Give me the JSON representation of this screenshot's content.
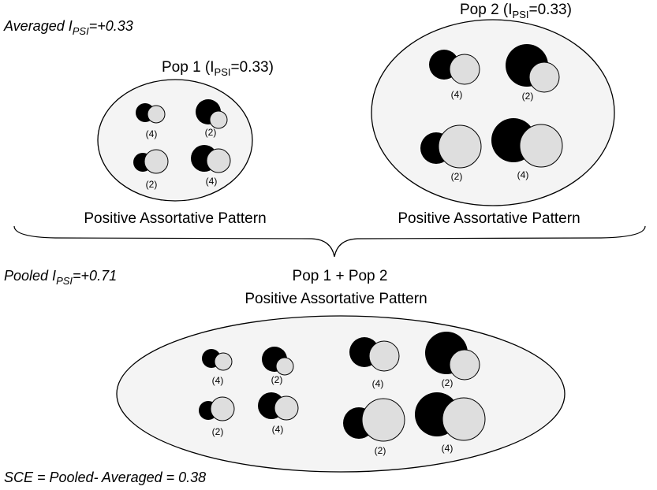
{
  "averaged": {
    "prefix": "Averaged I",
    "sub": "PSI",
    "suffix": "=+0.33"
  },
  "pooled": {
    "prefix": "Pooled I",
    "sub": "PSI",
    "suffix": "=+0.71"
  },
  "sce": "SCE = Pooled- Averaged = 0.38",
  "pop1": {
    "title_prefix": "Pop 1 (I",
    "title_sub": "PSI",
    "title_suffix": "=0.33)",
    "pattern": "Positive Assortative Pattern",
    "pairs": [
      {
        "count": "(4)"
      },
      {
        "count": "(2)"
      },
      {
        "count": "(2)"
      },
      {
        "count": "(4)"
      }
    ]
  },
  "pop2": {
    "title_prefix": "Pop 2 (I",
    "title_sub": "PSI",
    "title_suffix": "=0.33)",
    "pattern": "Positive Assortative Pattern",
    "pairs": [
      {
        "count": "(4)"
      },
      {
        "count": "(2)"
      },
      {
        "count": "(2)"
      },
      {
        "count": "(4)"
      }
    ]
  },
  "combined": {
    "title": "Pop 1 + Pop 2",
    "pattern": "Positive Assortative Pattern",
    "pairs": [
      {
        "count": "(4)"
      },
      {
        "count": "(2)"
      },
      {
        "count": "(2)"
      },
      {
        "count": "(4)"
      },
      {
        "count": "(4)"
      },
      {
        "count": "(2)"
      },
      {
        "count": "(2)"
      },
      {
        "count": "(4)"
      }
    ]
  },
  "colors": {
    "black_circle": "#000000",
    "grey_circle": "#dedede",
    "ellipse_fill": "#f4f4f4"
  }
}
